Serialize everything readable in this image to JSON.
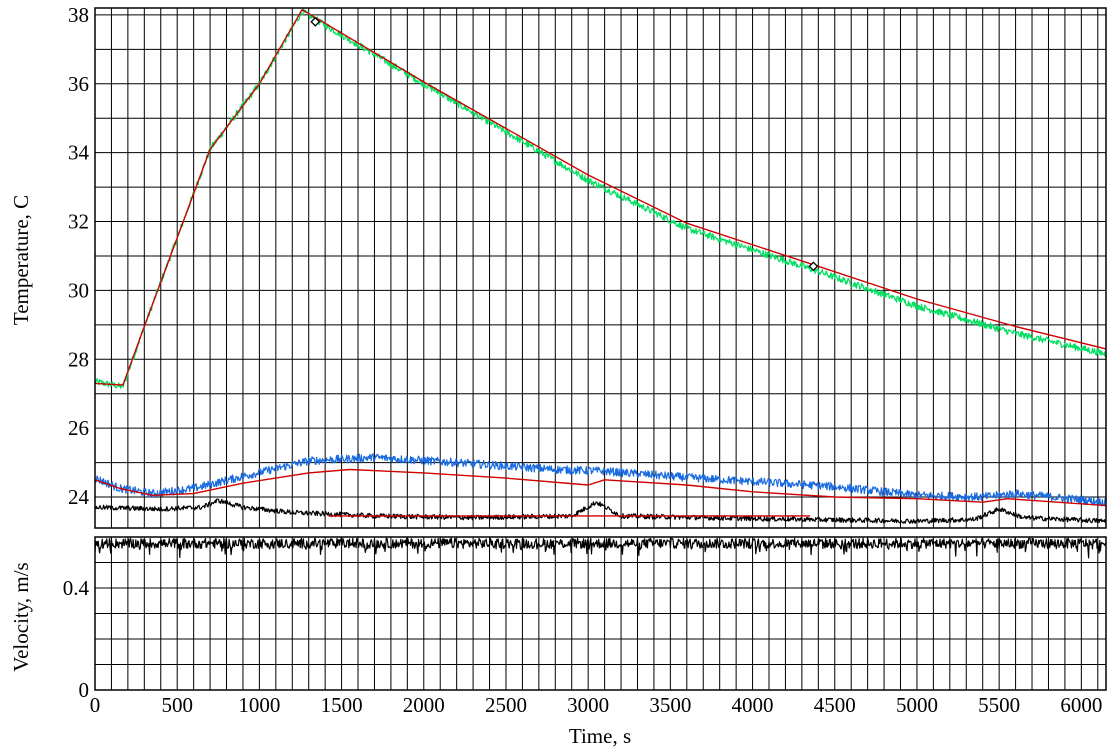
{
  "chart_data": [
    {
      "type": "line",
      "panel": "temperature",
      "title": "",
      "xlabel": "",
      "ylabel": "Temperature, C",
      "xlim": [
        0,
        6150
      ],
      "ylim": [
        23.1,
        38.2
      ],
      "x_ticks": [
        0,
        500,
        1000,
        1500,
        2000,
        2500,
        3000,
        3500,
        4000,
        4500,
        5000,
        5500,
        6000
      ],
      "y_ticks": [
        24,
        26,
        28,
        30,
        32,
        34,
        36,
        38
      ],
      "grid": true,
      "series": [
        {
          "color": "#00e060",
          "noise": 0.1,
          "points": [
            [
              0,
              27.35
            ],
            [
              170,
              27.2
            ],
            [
              300,
              28.95
            ],
            [
              700,
              34.1
            ],
            [
              1000,
              36.0
            ],
            [
              1260,
              38.1
            ],
            [
              2000,
              36.0
            ],
            [
              3000,
              33.2
            ],
            [
              3600,
              31.8
            ],
            [
              4400,
              30.55
            ],
            [
              5000,
              29.55
            ],
            [
              5600,
              28.75
            ],
            [
              6150,
              28.15
            ]
          ]
        },
        {
          "color": "#d00000",
          "noise": 0,
          "points": [
            [
              0,
              27.3
            ],
            [
              170,
              27.25
            ],
            [
              300,
              28.95
            ],
            [
              700,
              34.1
            ],
            [
              1000,
              36.0
            ],
            [
              1260,
              38.15
            ],
            [
              2000,
              36.05
            ],
            [
              3000,
              33.35
            ],
            [
              3600,
              31.95
            ],
            [
              4400,
              30.7
            ],
            [
              5000,
              29.75
            ],
            [
              5600,
              28.95
            ],
            [
              6150,
              28.3
            ]
          ]
        },
        {
          "color": "#1a6be0",
          "noise": 0.12,
          "points": [
            [
              0,
              24.55
            ],
            [
              150,
              24.25
            ],
            [
              350,
              24.1
            ],
            [
              600,
              24.25
            ],
            [
              900,
              24.6
            ],
            [
              1300,
              25.05
            ],
            [
              1700,
              25.15
            ],
            [
              2200,
              25.0
            ],
            [
              2800,
              24.8
            ],
            [
              3100,
              24.75
            ],
            [
              3500,
              24.6
            ],
            [
              4000,
              24.45
            ],
            [
              4500,
              24.3
            ],
            [
              5000,
              24.05
            ],
            [
              5400,
              24.0
            ],
            [
              5600,
              24.1
            ],
            [
              6150,
              23.85
            ]
          ]
        },
        {
          "color": "#d00000",
          "noise": 0,
          "points": [
            [
              0,
              24.5
            ],
            [
              150,
              24.25
            ],
            [
              350,
              24.05
            ],
            [
              600,
              24.1
            ],
            [
              900,
              24.4
            ],
            [
              1300,
              24.7
            ],
            [
              1550,
              24.8
            ],
            [
              2000,
              24.7
            ],
            [
              2500,
              24.55
            ],
            [
              3000,
              24.35
            ],
            [
              3100,
              24.5
            ],
            [
              3600,
              24.35
            ],
            [
              4000,
              24.15
            ],
            [
              4500,
              24.0
            ],
            [
              5000,
              23.95
            ],
            [
              5400,
              23.85
            ],
            [
              5550,
              23.95
            ],
            [
              6150,
              23.75
            ]
          ]
        },
        {
          "color": "#000000",
          "noise": 0.07,
          "points": [
            [
              0,
              23.7
            ],
            [
              400,
              23.65
            ],
            [
              650,
              23.7
            ],
            [
              750,
              23.9
            ],
            [
              900,
              23.7
            ],
            [
              1200,
              23.55
            ],
            [
              1700,
              23.45
            ],
            [
              2300,
              23.4
            ],
            [
              2900,
              23.45
            ],
            [
              3050,
              23.85
            ],
            [
              3200,
              23.45
            ],
            [
              3700,
              23.4
            ],
            [
              4300,
              23.35
            ],
            [
              5000,
              23.3
            ],
            [
              5350,
              23.35
            ],
            [
              5500,
              23.65
            ],
            [
              5650,
              23.4
            ],
            [
              6150,
              23.3
            ]
          ]
        },
        {
          "color": "#d00000",
          "noise": 0,
          "points": [
            [
              1420,
              23.45
            ],
            [
              4350,
              23.45
            ]
          ]
        },
        {
          "color": "#000000",
          "noise": 0,
          "marker": "diamond",
          "points": [
            [
              1340,
              37.8
            ],
            [
              4370,
              30.7
            ]
          ]
        }
      ]
    },
    {
      "type": "line",
      "panel": "velocity",
      "title": "",
      "xlabel": "Time, s",
      "ylabel": "Velocity, m/s",
      "xlim": [
        0,
        6150
      ],
      "ylim": [
        0,
        0.6
      ],
      "x_ticks": [
        0,
        500,
        1000,
        1500,
        2000,
        2500,
        3000,
        3500,
        4000,
        4500,
        5000,
        5500,
        6000
      ],
      "y_ticks": [
        0,
        0.4
      ],
      "grid": true,
      "series": [
        {
          "color": "#000000",
          "noise": 0.02,
          "points": [
            [
              0,
              0.575
            ],
            [
              6150,
              0.575
            ]
          ]
        }
      ]
    }
  ]
}
